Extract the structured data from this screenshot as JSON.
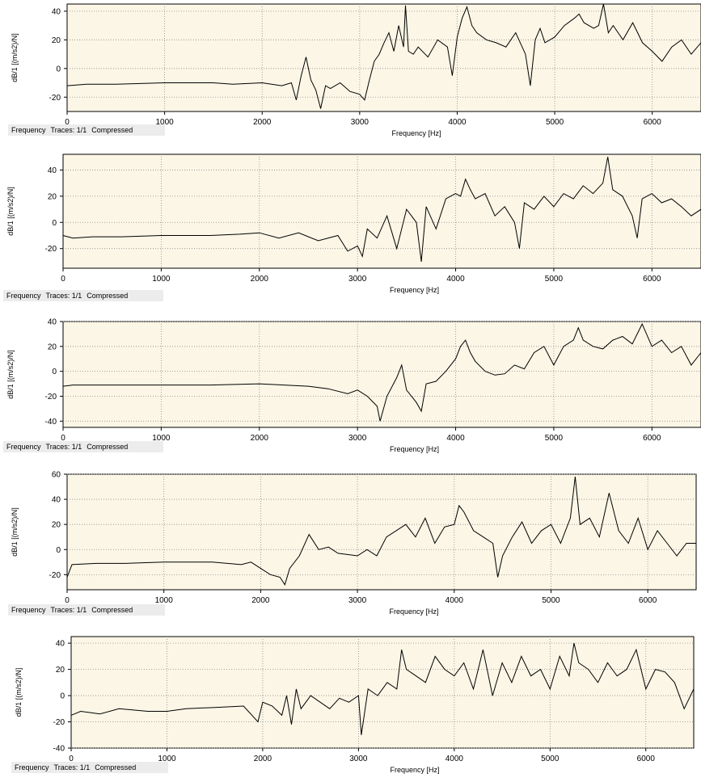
{
  "footer": {
    "label": "Frequency",
    "traces": "Traces: 1/1",
    "mode": "Compressed"
  },
  "colors": {
    "plot_background": "#fbf6e6",
    "trace": "#000000",
    "grid": "#8c8c8c",
    "footer_background": "#ececec"
  },
  "chart_data": [
    {
      "type": "line",
      "xlabel": "Frequency [Hz]",
      "ylabel": "dB/1 [(m/s2)/N]",
      "xlim": [
        0,
        6500
      ],
      "ylim": [
        -30,
        45
      ],
      "xticks": [
        0,
        1000,
        2000,
        3000,
        4000,
        5000,
        6000
      ],
      "yticks": [
        -20,
        0,
        20,
        40
      ],
      "grid": true,
      "series": [
        {
          "x": [
            0,
            200,
            500,
            1000,
            1500,
            1700,
            2000,
            2200,
            2300,
            2350,
            2400,
            2450,
            2500,
            2550,
            2600,
            2650,
            2700,
            2800,
            2900,
            3000,
            3050,
            3100,
            3150,
            3200,
            3250,
            3300,
            3350,
            3400,
            3450,
            3470,
            3500,
            3550,
            3600,
            3700,
            3800,
            3900,
            3950,
            4000,
            4050,
            4100,
            4150,
            4200,
            4300,
            4400,
            4500,
            4600,
            4700,
            4750,
            4800,
            4850,
            4900,
            5000,
            5100,
            5200,
            5250,
            5300,
            5400,
            5450,
            5500,
            5550,
            5600,
            5700,
            5800,
            5900,
            6000,
            6100,
            6200,
            6300,
            6400,
            6500
          ],
          "y": [
            -12,
            -11,
            -11,
            -10,
            -10,
            -11,
            -10,
            -12,
            -10,
            -22,
            -5,
            8,
            -8,
            -15,
            -28,
            -12,
            -14,
            -10,
            -16,
            -18,
            -22,
            -8,
            5,
            10,
            18,
            25,
            12,
            30,
            15,
            44,
            12,
            10,
            15,
            8,
            20,
            15,
            -5,
            22,
            35,
            43,
            30,
            25,
            20,
            18,
            15,
            25,
            10,
            -12,
            20,
            28,
            18,
            22,
            30,
            35,
            38,
            32,
            28,
            30,
            50,
            25,
            30,
            20,
            32,
            18,
            12,
            5,
            15,
            20,
            10,
            18
          ]
        }
      ]
    },
    {
      "type": "line",
      "xlabel": "Frequency [Hz]",
      "ylabel": "dB/1 [(m/s2)/N]",
      "xlim": [
        0,
        6500
      ],
      "ylim": [
        -35,
        52
      ],
      "xticks": [
        0,
        1000,
        2000,
        3000,
        4000,
        5000,
        6000
      ],
      "yticks": [
        -20,
        0,
        20,
        40
      ],
      "grid": true,
      "series": [
        {
          "x": [
            0,
            100,
            300,
            600,
            1000,
            1500,
            1800,
            2000,
            2200,
            2400,
            2600,
            2800,
            2900,
            3000,
            3050,
            3100,
            3200,
            3300,
            3400,
            3500,
            3600,
            3650,
            3700,
            3800,
            3900,
            4000,
            4050,
            4100,
            4150,
            4200,
            4300,
            4400,
            4500,
            4600,
            4650,
            4700,
            4800,
            4900,
            5000,
            5100,
            5200,
            5300,
            5400,
            5500,
            5550,
            5600,
            5700,
            5800,
            5850,
            5900,
            6000,
            6100,
            6200,
            6300,
            6400,
            6500
          ],
          "y": [
            -10,
            -12,
            -11,
            -11,
            -10,
            -10,
            -9,
            -8,
            -12,
            -8,
            -14,
            -10,
            -22,
            -18,
            -26,
            -5,
            -12,
            5,
            -20,
            10,
            0,
            -30,
            12,
            -5,
            18,
            22,
            20,
            33,
            25,
            18,
            22,
            5,
            12,
            0,
            -20,
            15,
            10,
            20,
            12,
            22,
            18,
            28,
            22,
            30,
            50,
            25,
            20,
            5,
            -12,
            18,
            22,
            15,
            18,
            12,
            5,
            10
          ]
        }
      ]
    },
    {
      "type": "line",
      "xlabel": "Frequency [Hz]",
      "ylabel": "dB/1 [(m/s2)/N]",
      "xlim": [
        0,
        6500
      ],
      "ylim": [
        -45,
        40
      ],
      "xticks": [
        0,
        1000,
        2000,
        3000,
        4000,
        5000,
        6000
      ],
      "yticks": [
        -40,
        -20,
        0,
        20,
        40
      ],
      "grid": true,
      "series": [
        {
          "x": [
            0,
            100,
            500,
            1000,
            1500,
            2000,
            2500,
            2700,
            2900,
            3000,
            3100,
            3200,
            3230,
            3300,
            3400,
            3450,
            3500,
            3600,
            3650,
            3700,
            3800,
            3900,
            4000,
            4050,
            4100,
            4150,
            4200,
            4300,
            4400,
            4500,
            4600,
            4700,
            4800,
            4900,
            5000,
            5100,
            5200,
            5250,
            5300,
            5400,
            5500,
            5600,
            5700,
            5800,
            5900,
            6000,
            6100,
            6200,
            6300,
            6400,
            6500
          ],
          "y": [
            -12,
            -11,
            -11,
            -11,
            -11,
            -10,
            -12,
            -14,
            -18,
            -15,
            -20,
            -28,
            -40,
            -20,
            -5,
            5,
            -15,
            -25,
            -32,
            -10,
            -8,
            0,
            10,
            20,
            25,
            15,
            8,
            0,
            -3,
            -2,
            5,
            2,
            15,
            20,
            5,
            20,
            25,
            35,
            25,
            20,
            18,
            25,
            28,
            22,
            38,
            20,
            25,
            15,
            20,
            5,
            15
          ]
        }
      ]
    },
    {
      "type": "line",
      "xlabel": "Frequency [Hz]",
      "ylabel": "dB/1 [(m/s2)/N]",
      "xlim": [
        0,
        6500
      ],
      "ylim": [
        -32,
        60
      ],
      "xticks": [
        0,
        1000,
        2000,
        3000,
        4000,
        5000,
        6000
      ],
      "yticks": [
        -20,
        0,
        20,
        40,
        60
      ],
      "grid": true,
      "series": [
        {
          "x": [
            0,
            50,
            300,
            600,
            1000,
            1500,
            1800,
            1900,
            2000,
            2100,
            2200,
            2250,
            2300,
            2400,
            2500,
            2600,
            2700,
            2800,
            3000,
            3100,
            3200,
            3300,
            3400,
            3500,
            3600,
            3700,
            3800,
            3900,
            4000,
            4050,
            4100,
            4200,
            4300,
            4400,
            4450,
            4500,
            4600,
            4700,
            4800,
            4900,
            5000,
            5100,
            5200,
            5250,
            5300,
            5400,
            5500,
            5600,
            5700,
            5800,
            5900,
            6000,
            6100,
            6200,
            6300,
            6400,
            6500
          ],
          "y": [
            -22,
            -12,
            -11,
            -11,
            -10,
            -10,
            -12,
            -10,
            -15,
            -20,
            -22,
            -28,
            -15,
            -5,
            12,
            0,
            2,
            -3,
            -5,
            0,
            -5,
            10,
            15,
            20,
            10,
            25,
            5,
            18,
            20,
            35,
            30,
            15,
            10,
            5,
            -22,
            -5,
            10,
            22,
            5,
            15,
            20,
            5,
            25,
            58,
            20,
            25,
            10,
            45,
            15,
            5,
            25,
            0,
            15,
            5,
            -5,
            5,
            5
          ]
        }
      ]
    },
    {
      "type": "line",
      "xlabel": "Frequency [Hz]",
      "ylabel": "dB/1 [(m/s2)/N]",
      "xlim": [
        0,
        6500
      ],
      "ylim": [
        -40,
        45
      ],
      "xticks": [
        0,
        1000,
        2000,
        3000,
        4000,
        5000,
        6000
      ],
      "yticks": [
        -40,
        -20,
        0,
        20,
        40
      ],
      "grid": true,
      "series": [
        {
          "x": [
            0,
            100,
            300,
            500,
            800,
            1000,
            1200,
            1500,
            1800,
            1950,
            2000,
            2100,
            2200,
            2250,
            2300,
            2350,
            2400,
            2500,
            2600,
            2700,
            2800,
            2900,
            3000,
            3030,
            3100,
            3200,
            3300,
            3400,
            3450,
            3500,
            3600,
            3700,
            3800,
            3900,
            4000,
            4100,
            4200,
            4300,
            4400,
            4500,
            4600,
            4700,
            4800,
            4900,
            5000,
            5100,
            5200,
            5250,
            5300,
            5400,
            5500,
            5600,
            5700,
            5800,
            5900,
            6000,
            6100,
            6200,
            6300,
            6400,
            6500
          ],
          "y": [
            -15,
            -12,
            -14,
            -10,
            -12,
            -12,
            -10,
            -9,
            -8,
            -20,
            -5,
            -8,
            -15,
            0,
            -22,
            5,
            -10,
            0,
            -5,
            -10,
            -2,
            -5,
            0,
            -30,
            5,
            0,
            10,
            5,
            35,
            20,
            15,
            10,
            30,
            20,
            15,
            25,
            5,
            35,
            0,
            25,
            10,
            30,
            15,
            20,
            5,
            30,
            15,
            40,
            25,
            20,
            10,
            25,
            15,
            20,
            35,
            5,
            20,
            18,
            10,
            -10,
            5
          ]
        }
      ]
    }
  ]
}
